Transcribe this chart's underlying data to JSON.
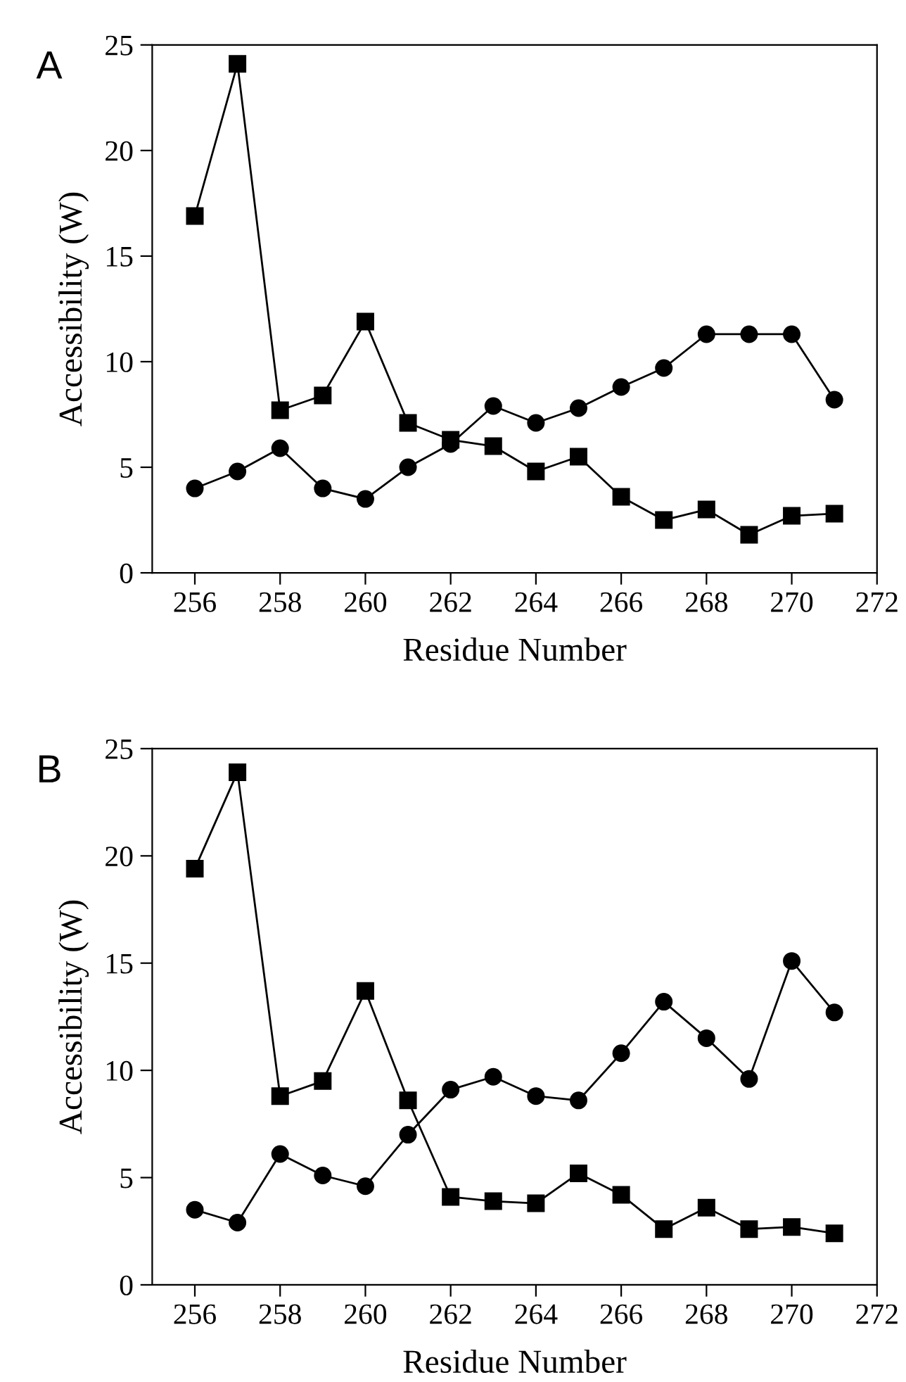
{
  "chart_data": [
    {
      "type": "line",
      "title": "A",
      "xlabel": "Residue Number",
      "ylabel": "Accessibility (W)",
      "x": [
        256,
        257,
        258,
        259,
        260,
        261,
        262,
        263,
        264,
        265,
        266,
        267,
        268,
        269,
        270,
        271
      ],
      "series": [
        {
          "color": "#000000",
          "marker": "square",
          "values": [
            16.9,
            24.1,
            7.7,
            8.4,
            11.9,
            7.1,
            6.3,
            6.0,
            4.8,
            5.5,
            3.6,
            2.5,
            3.0,
            1.8,
            2.7,
            2.8
          ]
        },
        {
          "color": "#000000",
          "marker": "circle",
          "values": [
            4.0,
            4.8,
            5.9,
            4.0,
            3.5,
            5.0,
            6.1,
            7.9,
            7.1,
            7.8,
            8.8,
            9.7,
            11.3,
            11.3,
            11.3,
            8.2
          ]
        }
      ],
      "xlim": [
        255,
        272
      ],
      "xticks": [
        256,
        258,
        260,
        262,
        264,
        266,
        268,
        270,
        272
      ],
      "ylim": [
        0,
        25
      ],
      "yticks": [
        0,
        5,
        10,
        15,
        20,
        25
      ],
      "line_style": "solid",
      "grid": false,
      "legend": false
    },
    {
      "type": "line",
      "title": "B",
      "xlabel": "Residue Number",
      "ylabel": "Accessibility (W)",
      "x": [
        256,
        257,
        258,
        259,
        260,
        261,
        262,
        263,
        264,
        265,
        266,
        267,
        268,
        269,
        270,
        271
      ],
      "series": [
        {
          "color": "#000000",
          "marker": "square",
          "values": [
            19.4,
            23.9,
            8.8,
            9.5,
            13.7,
            8.6,
            4.1,
            3.9,
            3.8,
            5.2,
            4.2,
            2.6,
            3.6,
            2.6,
            2.7,
            2.4
          ]
        },
        {
          "color": "#000000",
          "marker": "circle",
          "values": [
            3.5,
            2.9,
            6.1,
            5.1,
            4.6,
            7.0,
            9.1,
            9.7,
            8.8,
            8.6,
            10.8,
            13.2,
            11.5,
            9.6,
            15.1,
            12.7
          ]
        }
      ],
      "xlim": [
        255,
        272
      ],
      "xticks": [
        256,
        258,
        260,
        262,
        264,
        266,
        268,
        270,
        272
      ],
      "ylim": [
        0,
        25
      ],
      "yticks": [
        0,
        5,
        10,
        15,
        20,
        25
      ],
      "line_style": "solid",
      "grid": false,
      "legend": false
    }
  ]
}
